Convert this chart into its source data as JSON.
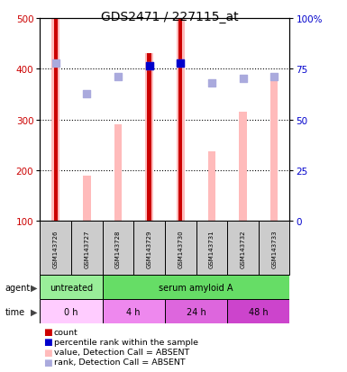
{
  "title": "GDS2471 / 227115_at",
  "samples": [
    "GSM143726",
    "GSM143727",
    "GSM143728",
    "GSM143729",
    "GSM143730",
    "GSM143731",
    "GSM143732",
    "GSM143733"
  ],
  "count_values": [
    500,
    null,
    null,
    430,
    500,
    null,
    null,
    null
  ],
  "count_color": "#cc0000",
  "absent_bar_values": [
    500,
    190,
    290,
    430,
    500,
    237,
    315,
    380
  ],
  "absent_bar_color": "#ffbbbb",
  "rank_absent_values": [
    410,
    350,
    385,
    405,
    410,
    372,
    380,
    385
  ],
  "rank_absent_color": "#aaaadd",
  "percentile_values": [
    null,
    null,
    null,
    405,
    410,
    null,
    null,
    null
  ],
  "percentile_color": "#0000cc",
  "ylim": [
    100,
    500
  ],
  "y_ticks_left": [
    100,
    200,
    300,
    400,
    500
  ],
  "y_ticks_right": [
    0,
    25,
    50,
    75,
    100
  ],
  "agent_row": [
    {
      "label": "untreated",
      "start": 0,
      "end": 2,
      "color": "#99ee99"
    },
    {
      "label": "serum amyloid A",
      "start": 2,
      "end": 8,
      "color": "#66dd66"
    }
  ],
  "time_colors": [
    "#ffccff",
    "#ee88ee",
    "#dd66dd",
    "#cc44cc"
  ],
  "time_row": [
    {
      "label": "0 h",
      "start": 0,
      "end": 2
    },
    {
      "label": "4 h",
      "start": 2,
      "end": 4
    },
    {
      "label": "24 h",
      "start": 4,
      "end": 6
    },
    {
      "label": "48 h",
      "start": 6,
      "end": 8
    }
  ],
  "legend_items": [
    {
      "color": "#cc0000",
      "label": "count"
    },
    {
      "color": "#0000cc",
      "label": "percentile rank within the sample"
    },
    {
      "color": "#ffbbbb",
      "label": "value, Detection Call = ABSENT"
    },
    {
      "color": "#aaaadd",
      "label": "rank, Detection Call = ABSENT"
    }
  ],
  "absent_bar_width": 0.25,
  "count_bar_width": 0.12,
  "dot_size": 30,
  "background_color": "#ffffff",
  "axis_label_color_left": "#cc0000",
  "axis_label_color_right": "#0000cc",
  "title_fontsize": 10
}
